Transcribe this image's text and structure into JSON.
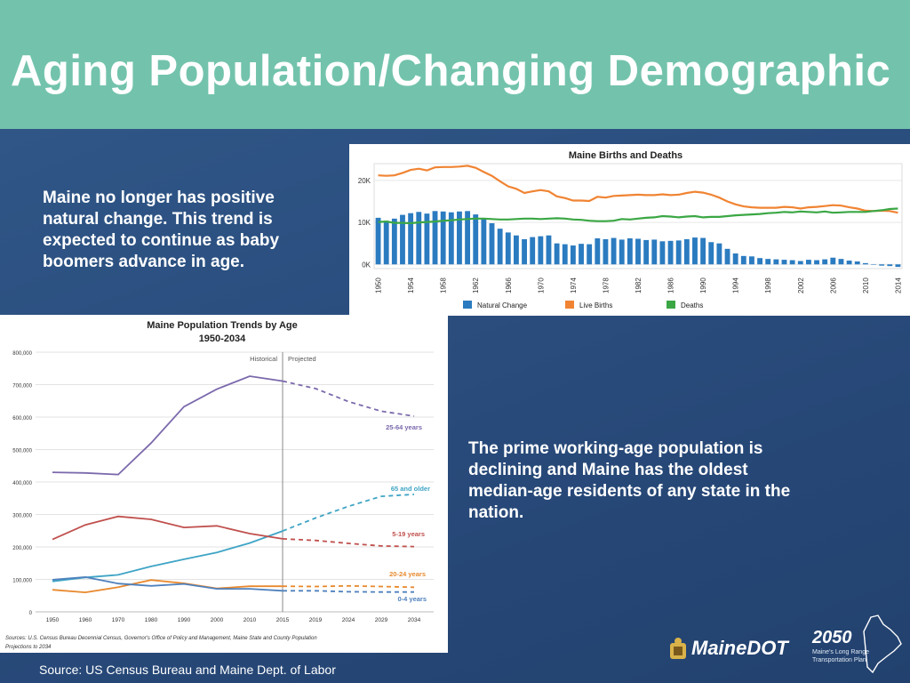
{
  "slide": {
    "title": "Aging Population/Changing Demographic",
    "text_left": "Maine no longer has positive natural change.  This trend is expected to continue as baby boomers advance in age.",
    "text_right": "The prime working-age population is declining and Maine has the oldest median-age residents of any state in the nation.",
    "source": "Source: US Census Bureau and Maine Dept. of Labor",
    "logo_text": "MaineDOT",
    "brand_year": "2050",
    "brand_sub1": "Maine's Long Range",
    "brand_sub2": "Transportation Plan",
    "colors": {
      "header": "#73c3ac",
      "background": "#2d4f80"
    }
  },
  "chart_data": [
    {
      "type": "bar+line",
      "title": "Maine Births and Deaths",
      "years": [
        1950,
        1951,
        1952,
        1953,
        1954,
        1955,
        1956,
        1957,
        1958,
        1959,
        1960,
        1961,
        1962,
        1963,
        1964,
        1965,
        1966,
        1967,
        1968,
        1969,
        1970,
        1971,
        1972,
        1973,
        1974,
        1975,
        1976,
        1977,
        1978,
        1979,
        1980,
        1981,
        1982,
        1983,
        1984,
        1985,
        1986,
        1987,
        1988,
        1989,
        1990,
        1991,
        1992,
        1993,
        1994,
        1995,
        1996,
        1997,
        1998,
        1999,
        2000,
        2001,
        2002,
        2003,
        2004,
        2005,
        2006,
        2007,
        2008,
        2009,
        2010,
        2011,
        2012,
        2013,
        2014
      ],
      "x_tick_labels": [
        "1950",
        "1954",
        "1958",
        "1962",
        "1966",
        "1970",
        "1974",
        "1978",
        "1982",
        "1986",
        "1990",
        "1994",
        "1998",
        "2002",
        "2006",
        "2010",
        "2014"
      ],
      "y_tick_labels": [
        "0K",
        "10K",
        "20K"
      ],
      "ylim": [
        -1000,
        24000
      ],
      "series": [
        {
          "name": "Natural Change",
          "type": "bar",
          "color": "#2b7bc0",
          "values": [
            11100,
            10400,
            10900,
            11800,
            12200,
            12500,
            12100,
            12700,
            12600,
            12400,
            12600,
            12700,
            11900,
            11000,
            9800,
            8500,
            7600,
            6900,
            6000,
            6500,
            6700,
            6900,
            5000,
            4800,
            4500,
            4900,
            4800,
            6200,
            6000,
            6300,
            5900,
            6200,
            6100,
            5800,
            5900,
            5500,
            5600,
            5700,
            6000,
            6400,
            6300,
            5300,
            5000,
            3700,
            2600,
            2000,
            1900,
            1500,
            1300,
            1200,
            1100,
            1000,
            800,
            1100,
            1000,
            1200,
            1600,
            1300,
            900,
            700,
            300,
            -100,
            -300,
            -400,
            -600
          ]
        },
        {
          "name": "Live Births",
          "type": "line",
          "color": "#f08433",
          "values": [
            21200,
            21100,
            21200,
            21800,
            22500,
            22800,
            22400,
            23100,
            23200,
            23200,
            23300,
            23500,
            23000,
            22000,
            21100,
            19800,
            18600,
            18000,
            17000,
            17400,
            17700,
            17400,
            16200,
            15800,
            15200,
            15200,
            15100,
            16100,
            15900,
            16300,
            16400,
            16500,
            16600,
            16500,
            16500,
            16700,
            16500,
            16600,
            17000,
            17300,
            17100,
            16600,
            15900,
            15000,
            14300,
            13800,
            13600,
            13500,
            13500,
            13500,
            13700,
            13600,
            13300,
            13600,
            13700,
            13900,
            14100,
            14000,
            13600,
            13300,
            12800,
            12700,
            12800,
            12700,
            12300
          ]
        },
        {
          "name": "Deaths",
          "type": "line",
          "color": "#3aa744",
          "values": [
            10100,
            10200,
            9900,
            9900,
            9800,
            10000,
            10100,
            10200,
            10400,
            10500,
            10700,
            10800,
            10900,
            10900,
            10800,
            10700,
            10700,
            10800,
            10900,
            10900,
            10800,
            10900,
            11000,
            10900,
            10700,
            10600,
            10400,
            10300,
            10300,
            10400,
            10800,
            10700,
            10900,
            11100,
            11200,
            11500,
            11400,
            11200,
            11400,
            11500,
            11200,
            11300,
            11300,
            11500,
            11700,
            11800,
            11900,
            12000,
            12200,
            12300,
            12500,
            12400,
            12600,
            12500,
            12400,
            12600,
            12300,
            12400,
            12500,
            12500,
            12500,
            12700,
            12900,
            13200,
            13300
          ]
        }
      ]
    },
    {
      "type": "line",
      "title": "Maine Population Trends by Age",
      "subtitle": "1950-2034",
      "divider_labels": {
        "historical": "Historical",
        "projected": "Projected"
      },
      "x": [
        1950,
        1960,
        1970,
        1980,
        1990,
        2000,
        2010,
        2015,
        2019,
        2024,
        2029,
        2034
      ],
      "x_tick_labels": [
        "1950",
        "1960",
        "1970",
        "1980",
        "1990",
        "2000",
        "2010",
        "2015",
        "2019",
        "2024",
        "2029",
        "2034"
      ],
      "y_tick_labels": [
        "0",
        "100,000",
        "200,000",
        "300,000",
        "400,000",
        "500,000",
        "600,000",
        "700,000",
        "800,000"
      ],
      "ylim": [
        0,
        800000
      ],
      "projection_start": 2015,
      "series": [
        {
          "name": "25-64 years",
          "color": "#7b69ac",
          "values": [
            430000,
            428000,
            423000,
            520000,
            632000,
            686000,
            726000,
            711000,
            688000,
            648000,
            618000,
            603000
          ]
        },
        {
          "name": "65 and older",
          "color": "#3ea4c5",
          "values": [
            94000,
            106000,
            114000,
            140000,
            162000,
            183000,
            212000,
            249000,
            289000,
            325000,
            356000,
            362000
          ]
        },
        {
          "name": "5-19 years",
          "color": "#c0504d",
          "values": [
            223000,
            268000,
            294000,
            285000,
            260000,
            265000,
            241000,
            225000,
            220000,
            211000,
            203000,
            201000
          ]
        },
        {
          "name": "20-24 years",
          "color": "#e8892e",
          "values": [
            68000,
            60000,
            76000,
            98000,
            88000,
            72000,
            79000,
            79000,
            78000,
            80000,
            78000,
            76000
          ]
        },
        {
          "name": "0-4 years",
          "color": "#4f81bd",
          "values": [
            99000,
            107000,
            87000,
            80000,
            86000,
            71000,
            71000,
            65000,
            65000,
            62000,
            61000,
            61000
          ]
        }
      ],
      "source_note_1": "Sources: U.S. Census Bureau Decennial Census, Governor's Office of Policy and Management, Maine State and County Population",
      "source_note_2": "Projections to 2034"
    }
  ]
}
